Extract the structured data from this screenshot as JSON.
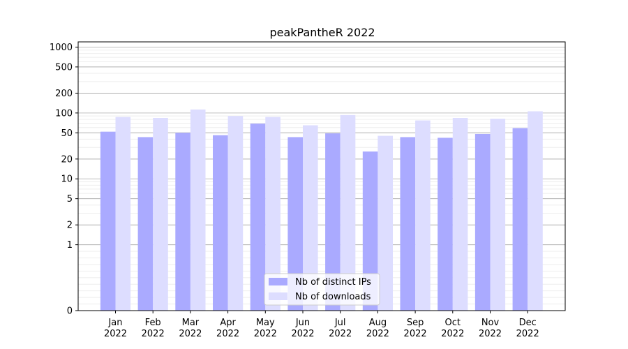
{
  "chart_data": {
    "type": "bar",
    "title": "peakPantheR 2022",
    "xlabel": "",
    "ylabel": "",
    "yscale": "symlog",
    "ylim": [
      0,
      1200
    ],
    "yticks": [
      0,
      1,
      2,
      5,
      10,
      20,
      50,
      100,
      200,
      500,
      1000
    ],
    "ytick_labels": [
      "0",
      "1",
      "2",
      "5",
      "10",
      "20",
      "50",
      "100",
      "200",
      "500",
      "1000"
    ],
    "categories": [
      "Jan\n2022",
      "Feb\n2022",
      "Mar\n2022",
      "Apr\n2022",
      "May\n2022",
      "Jun\n2022",
      "Jul\n2022",
      "Aug\n2022",
      "Sep\n2022",
      "Oct\n2022",
      "Nov\n2022",
      "Dec\n2022"
    ],
    "series": [
      {
        "name": "Nb of distinct IPs",
        "color": "#aaaaff",
        "values": [
          52,
          43,
          50,
          46,
          69,
          43,
          49,
          26,
          43,
          42,
          48,
          59
        ]
      },
      {
        "name": "Nb of downloads",
        "color": "#ddddff",
        "values": [
          87,
          84,
          113,
          90,
          87,
          65,
          93,
          45,
          77,
          84,
          82,
          106
        ]
      }
    ],
    "grid": true,
    "legend_position": "lower-center"
  }
}
